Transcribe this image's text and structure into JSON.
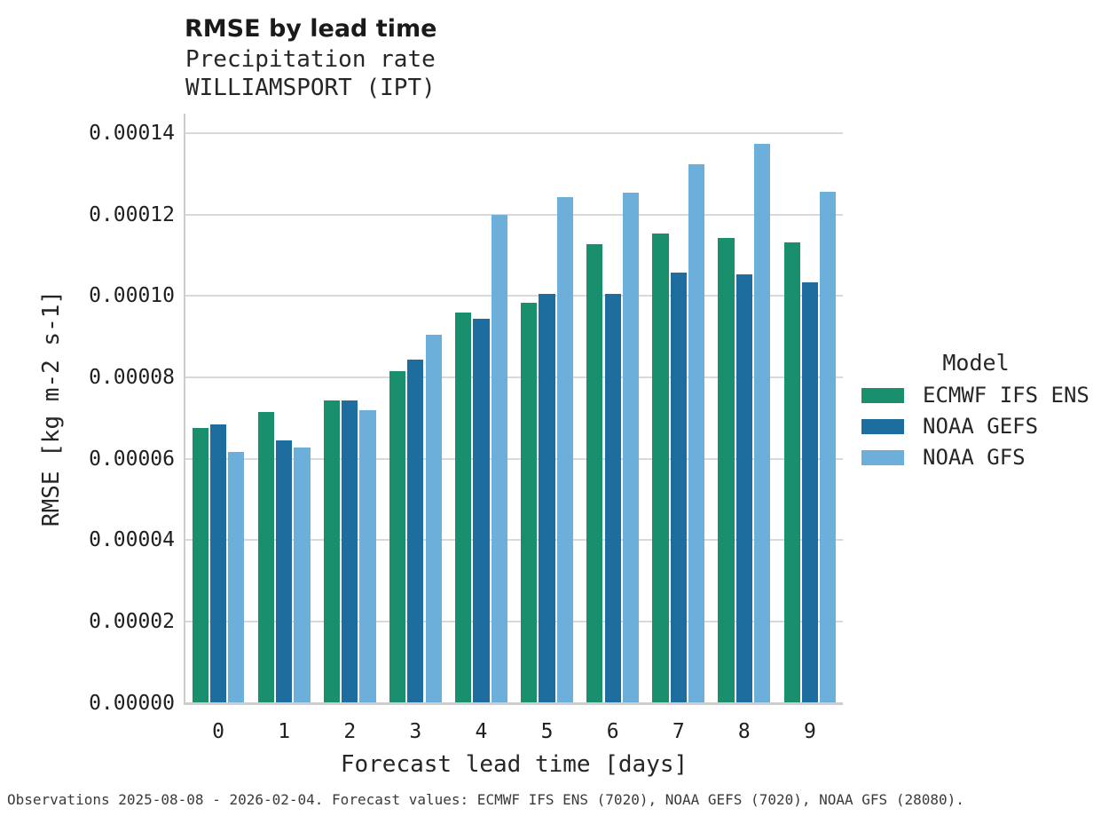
{
  "header": {
    "title": "RMSE by lead time"
  },
  "chart_data": {
    "type": "bar",
    "title": "RMSE by lead time",
    "subtitle": [
      "Precipitation rate",
      "WILLIAMSPORT (IPT)"
    ],
    "xlabel": "Forecast lead time [days]",
    "ylabel": "RMSE [kg m-2 s-1]",
    "categories": [
      "0",
      "1",
      "2",
      "3",
      "4",
      "5",
      "6",
      "7",
      "8",
      "9"
    ],
    "series": [
      {
        "name": "ECMWF IFS ENS",
        "color": "#1a8f6d",
        "values": [
          6.76e-05,
          7.15e-05,
          7.43e-05,
          8.16e-05,
          9.59e-05,
          9.84e-05,
          0.0001127,
          0.0001153,
          0.0001143,
          0.0001131
        ]
      },
      {
        "name": "NOAA GEFS",
        "color": "#1d6e9f",
        "values": [
          6.85e-05,
          6.45e-05,
          7.43e-05,
          8.44e-05,
          9.44e-05,
          0.0001005,
          0.0001005,
          0.0001057,
          0.0001053,
          0.0001033
        ]
      },
      {
        "name": "NOAA GFS",
        "color": "#6cafdb",
        "values": [
          6.17e-05,
          6.28e-05,
          7.19e-05,
          9.05e-05,
          0.0001199,
          0.0001243,
          0.0001253,
          0.0001324,
          0.0001373,
          0.0001255
        ]
      }
    ],
    "ylim": [
      0,
      0.000145
    ],
    "yticks": {
      "values": [
        0.0,
        2e-05,
        4e-05,
        6e-05,
        8e-05,
        0.0001,
        0.00012,
        0.00014
      ],
      "labels": [
        "0.00000",
        "0.00002",
        "0.00004",
        "0.00006",
        "0.00008",
        "0.00010",
        "0.00012",
        "0.00014"
      ]
    },
    "grid": "horizontal",
    "legend": {
      "title": "Model",
      "position": "right"
    }
  },
  "footer": {
    "text": "Observations 2025-08-08 - 2026-02-04. Forecast values: ECMWF IFS ENS (7020), NOAA GEFS (7020), NOAA GFS (28080)."
  }
}
